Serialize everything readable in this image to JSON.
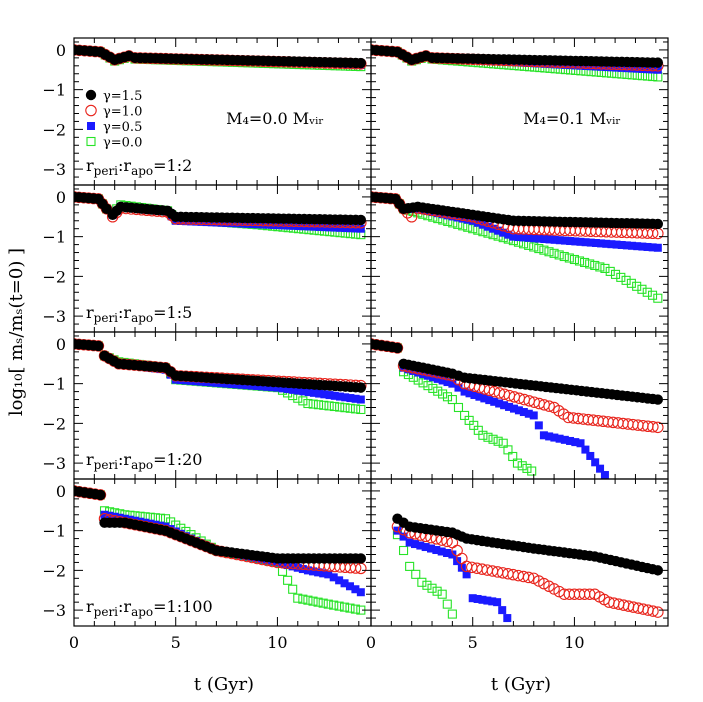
{
  "chart_data": {
    "type": "scatter",
    "xlabel": "t (Gyr)",
    "ylabel": "log₁₀[ mₛ/mₛ(t=0) ]",
    "xlim": [
      0,
      14.6
    ],
    "ylim": [
      -3.4,
      0.3
    ],
    "x_ticks": [
      "0",
      "5",
      "10"
    ],
    "y_ticks": [
      "0",
      "−1",
      "−2",
      "−3"
    ],
    "legend": [
      "γ=1.5",
      "γ=1.0",
      "γ=0.5",
      "γ=0.0"
    ],
    "legend_placement": "top-left of top-left panel",
    "column_titles": [
      "M₄=0.0  Mᵥᵢᵣ",
      "M₄=0.1  Mᵥᵢᵣ"
    ],
    "series_styles": {
      "g15": {
        "label": "γ=1.5",
        "marker": "filled-circle",
        "color": "#000000"
      },
      "g10": {
        "label": "γ=1.0",
        "marker": "open-circle",
        "color": "#e8231b"
      },
      "g05": {
        "label": "γ=0.5",
        "marker": "filled-square",
        "color": "#1a1aff"
      },
      "g00": {
        "label": "γ=0.0",
        "marker": "open-square",
        "color": "#27e327"
      }
    },
    "panels": [
      {
        "row": 0,
        "col": 0,
        "label": "r_peri:r_apo=1:2",
        "step": 0.25,
        "tracks": {
          "g15": [
            [
              0,
              0
            ],
            [
              1.3,
              -0.05
            ],
            [
              2,
              -0.25
            ],
            [
              2.7,
              -0.15
            ],
            [
              3,
              -0.2
            ],
            [
              14.1,
              -0.33
            ]
          ],
          "g10": [
            [
              0,
              0
            ],
            [
              1.3,
              -0.05
            ],
            [
              2,
              -0.25
            ],
            [
              2.7,
              -0.15
            ],
            [
              3,
              -0.2
            ],
            [
              14.1,
              -0.35
            ]
          ],
          "g05": [
            [
              0,
              0
            ],
            [
              1.3,
              -0.05
            ],
            [
              2,
              -0.25
            ],
            [
              2.7,
              -0.15
            ],
            [
              3,
              -0.2
            ],
            [
              14.1,
              -0.38
            ]
          ],
          "g00": [
            [
              0,
              0
            ],
            [
              1.3,
              -0.05
            ],
            [
              2,
              -0.28
            ],
            [
              2.7,
              -0.18
            ],
            [
              3,
              -0.23
            ],
            [
              14.1,
              -0.42
            ]
          ]
        }
      },
      {
        "row": 0,
        "col": 1,
        "label": "",
        "step": 0.25,
        "tracks": {
          "g15": [
            [
              0,
              0
            ],
            [
              1.3,
              -0.05
            ],
            [
              2,
              -0.25
            ],
            [
              2.7,
              -0.15
            ],
            [
              3,
              -0.2
            ],
            [
              14.1,
              -0.32
            ]
          ],
          "g10": [
            [
              0,
              0
            ],
            [
              1.3,
              -0.05
            ],
            [
              2,
              -0.25
            ],
            [
              2.7,
              -0.15
            ],
            [
              3,
              -0.2
            ],
            [
              14.1,
              -0.4
            ]
          ],
          "g05": [
            [
              0,
              0
            ],
            [
              1.3,
              -0.05
            ],
            [
              2,
              -0.25
            ],
            [
              2.7,
              -0.15
            ],
            [
              3,
              -0.2
            ],
            [
              14.1,
              -0.5
            ]
          ],
          "g00": [
            [
              0,
              0
            ],
            [
              1.3,
              -0.05
            ],
            [
              2,
              -0.28
            ],
            [
              2.7,
              -0.18
            ],
            [
              3,
              -0.23
            ],
            [
              14.1,
              -0.68
            ]
          ]
        }
      },
      {
        "row": 1,
        "col": 0,
        "label": "r_peri:r_apo=1:5",
        "step": 0.25,
        "tracks": {
          "g15": [
            [
              0,
              0
            ],
            [
              1.2,
              -0.05
            ],
            [
              1.6,
              -0.3
            ],
            [
              1.9,
              -0.45
            ],
            [
              2.3,
              -0.25
            ],
            [
              4.6,
              -0.35
            ],
            [
              5,
              -0.5
            ],
            [
              14.1,
              -0.58
            ]
          ],
          "g10": [
            [
              0,
              0
            ],
            [
              1.2,
              -0.05
            ],
            [
              1.6,
              -0.3
            ],
            [
              1.9,
              -0.5
            ],
            [
              2.3,
              -0.28
            ],
            [
              4.6,
              -0.38
            ],
            [
              5,
              -0.55
            ],
            [
              14.1,
              -0.65
            ]
          ],
          "g05": [
            [
              0,
              0
            ],
            [
              1.2,
              -0.05
            ],
            [
              1.6,
              -0.3
            ],
            [
              1.9,
              -0.45
            ],
            [
              2.3,
              -0.25
            ],
            [
              4.6,
              -0.38
            ],
            [
              5,
              -0.6
            ],
            [
              14.1,
              -0.8
            ]
          ],
          "g00": [
            [
              0,
              0
            ],
            [
              1.2,
              -0.05
            ],
            [
              1.6,
              -0.3
            ],
            [
              1.9,
              -0.4
            ],
            [
              2.3,
              -0.2
            ],
            [
              4.6,
              -0.35
            ],
            [
              5,
              -0.55
            ],
            [
              9,
              -0.7
            ],
            [
              14.1,
              -0.95
            ]
          ]
        }
      },
      {
        "row": 1,
        "col": 1,
        "label": "",
        "step": 0.25,
        "tracks": {
          "g15": [
            [
              0,
              0
            ],
            [
              1.2,
              -0.05
            ],
            [
              1.6,
              -0.3
            ],
            [
              2.3,
              -0.25
            ],
            [
              5,
              -0.45
            ],
            [
              7,
              -0.6
            ],
            [
              14.1,
              -0.68
            ]
          ],
          "g10": [
            [
              0,
              0
            ],
            [
              1.2,
              -0.05
            ],
            [
              1.6,
              -0.3
            ],
            [
              2,
              -0.5
            ],
            [
              2.3,
              -0.28
            ],
            [
              5,
              -0.5
            ],
            [
              7,
              -0.8
            ],
            [
              14.1,
              -0.92
            ]
          ],
          "g05": [
            [
              0,
              0
            ],
            [
              1.2,
              -0.05
            ],
            [
              1.6,
              -0.3
            ],
            [
              2.3,
              -0.3
            ],
            [
              5,
              -0.6
            ],
            [
              7,
              -1.0
            ],
            [
              14.1,
              -1.28
            ]
          ],
          "g00": [
            [
              0,
              0
            ],
            [
              1.2,
              -0.05
            ],
            [
              1.6,
              -0.3
            ],
            [
              2.3,
              -0.4
            ],
            [
              5,
              -0.8
            ],
            [
              7,
              -1.1
            ],
            [
              9.5,
              -1.5
            ],
            [
              11.5,
              -1.8
            ],
            [
              14.1,
              -2.55
            ]
          ]
        }
      },
      {
        "row": 2,
        "col": 0,
        "label": "r_peri:r_apo=1:20",
        "step": 0.25,
        "tracks": {
          "g15": [
            [
              0,
              0
            ],
            [
              1.2,
              -0.05
            ],
            [
              1.5,
              -0.3
            ],
            [
              2.2,
              -0.5
            ],
            [
              4.5,
              -0.6
            ],
            [
              5,
              -0.8
            ],
            [
              14.1,
              -1.1
            ]
          ],
          "g10": [
            [
              0,
              0
            ],
            [
              1.2,
              -0.05
            ],
            [
              1.5,
              -0.3
            ],
            [
              2.2,
              -0.5
            ],
            [
              4.5,
              -0.6
            ],
            [
              5,
              -0.8
            ],
            [
              14.1,
              -1.05
            ]
          ],
          "g05": [
            [
              0,
              0
            ],
            [
              1.2,
              -0.05
            ],
            [
              1.5,
              -0.3
            ],
            [
              2.2,
              -0.5
            ],
            [
              4.5,
              -0.65
            ],
            [
              5,
              -0.9
            ],
            [
              10,
              -1.1
            ],
            [
              14.1,
              -1.4
            ]
          ],
          "g00": [
            [
              0,
              0
            ],
            [
              1.2,
              -0.05
            ],
            [
              1.5,
              -0.3
            ],
            [
              2.2,
              -0.45
            ],
            [
              4.5,
              -0.6
            ],
            [
              5,
              -0.9
            ],
            [
              10,
              -1.1
            ],
            [
              11.5,
              -1.5
            ],
            [
              14.1,
              -1.65
            ]
          ]
        }
      },
      {
        "row": 2,
        "col": 1,
        "label": "",
        "step": 0.25,
        "tracks": {
          "g15": [
            [
              0,
              0
            ],
            [
              1.3,
              -0.1
            ],
            [
              1.6,
              -0.5
            ],
            [
              4,
              -0.75
            ],
            [
              4.6,
              -0.85
            ],
            [
              14.1,
              -1.4
            ]
          ],
          "g10": [
            [
              0,
              0
            ],
            [
              1.3,
              -0.1
            ],
            [
              1.6,
              -0.55
            ],
            [
              4,
              -0.8
            ],
            [
              4.6,
              -1.0
            ],
            [
              9,
              -1.6
            ],
            [
              9.7,
              -1.85
            ],
            [
              14.1,
              -2.1
            ]
          ],
          "g05": [
            [
              0,
              0
            ],
            [
              1.3,
              -0.1
            ],
            [
              1.6,
              -0.6
            ],
            [
              4,
              -1.0
            ],
            [
              4.6,
              -1.2
            ],
            [
              8,
              -1.8
            ],
            [
              8.5,
              -2.3
            ],
            [
              10.3,
              -2.5
            ],
            [
              11.5,
              -3.3
            ]
          ],
          "g00": [
            [
              0,
              0
            ],
            [
              1.3,
              -0.1
            ],
            [
              1.6,
              -0.7
            ],
            [
              4,
              -1.4
            ],
            [
              4.6,
              -1.8
            ],
            [
              5.5,
              -2.3
            ],
            [
              6.5,
              -2.5
            ],
            [
              7.2,
              -3.0
            ],
            [
              7.9,
              -3.2
            ]
          ]
        }
      },
      {
        "row": 3,
        "col": 0,
        "label": "r_peri:r_apo=1:100",
        "step": 0.25,
        "tracks": {
          "g15": [
            [
              0,
              0
            ],
            [
              1.3,
              -0.1
            ],
            [
              1.5,
              -0.8
            ],
            [
              2.5,
              -0.8
            ],
            [
              4.5,
              -1.0
            ],
            [
              7,
              -1.5
            ],
            [
              10,
              -1.7
            ],
            [
              14.1,
              -1.7
            ]
          ],
          "g10": [
            [
              0,
              0
            ],
            [
              1.3,
              -0.1
            ],
            [
              1.5,
              -0.7
            ],
            [
              2.5,
              -0.8
            ],
            [
              4.5,
              -1.0
            ],
            [
              7,
              -1.5
            ],
            [
              10,
              -1.8
            ],
            [
              14.1,
              -1.95
            ]
          ],
          "g05": [
            [
              0,
              0
            ],
            [
              1.3,
              -0.1
            ],
            [
              1.5,
              -0.6
            ],
            [
              2.5,
              -0.7
            ],
            [
              4.5,
              -0.9
            ],
            [
              7,
              -1.5
            ],
            [
              10,
              -1.8
            ],
            [
              11.5,
              -2.0
            ],
            [
              12.5,
              -2.1
            ],
            [
              14.1,
              -2.55
            ]
          ],
          "g00": [
            [
              0,
              0
            ],
            [
              1.3,
              -0.1
            ],
            [
              1.5,
              -0.5
            ],
            [
              2.5,
              -0.6
            ],
            [
              4.5,
              -0.7
            ],
            [
              7,
              -1.5
            ],
            [
              10,
              -1.8
            ],
            [
              11,
              -2.7
            ],
            [
              12.5,
              -2.85
            ],
            [
              14.1,
              -3.0
            ]
          ]
        }
      },
      {
        "row": 3,
        "col": 1,
        "label": "",
        "step": 0.25,
        "tracks": {
          "g15": [
            [
              1.3,
              -0.7
            ],
            [
              1.9,
              -0.9
            ],
            [
              4,
              -1.05
            ],
            [
              4.7,
              -1.2
            ],
            [
              8,
              -1.45
            ],
            [
              11,
              -1.65
            ],
            [
              14.1,
              -2.0
            ]
          ],
          "g10": [
            [
              1.3,
              -0.9
            ],
            [
              1.9,
              -1.05
            ],
            [
              4,
              -1.3
            ],
            [
              4.7,
              -1.9
            ],
            [
              8,
              -2.2
            ],
            [
              9.5,
              -2.6
            ],
            [
              11,
              -2.6
            ],
            [
              11.7,
              -2.8
            ],
            [
              14.1,
              -3.05
            ]
          ],
          "g05": [
            [
              1.3,
              -1.0
            ],
            [
              1.9,
              -1.3
            ],
            [
              4,
              -1.6
            ],
            [
              4.7,
              -2.1
            ],
            [
              5,
              -2.7
            ],
            [
              6.2,
              -2.8
            ],
            [
              6.7,
              -3.2
            ]
          ],
          "g00": [
            [
              1.3,
              -1.1
            ],
            [
              1.9,
              -1.9
            ],
            [
              2.5,
              -2.3
            ],
            [
              3.5,
              -2.6
            ],
            [
              4,
              -3.1
            ]
          ]
        }
      }
    ]
  }
}
